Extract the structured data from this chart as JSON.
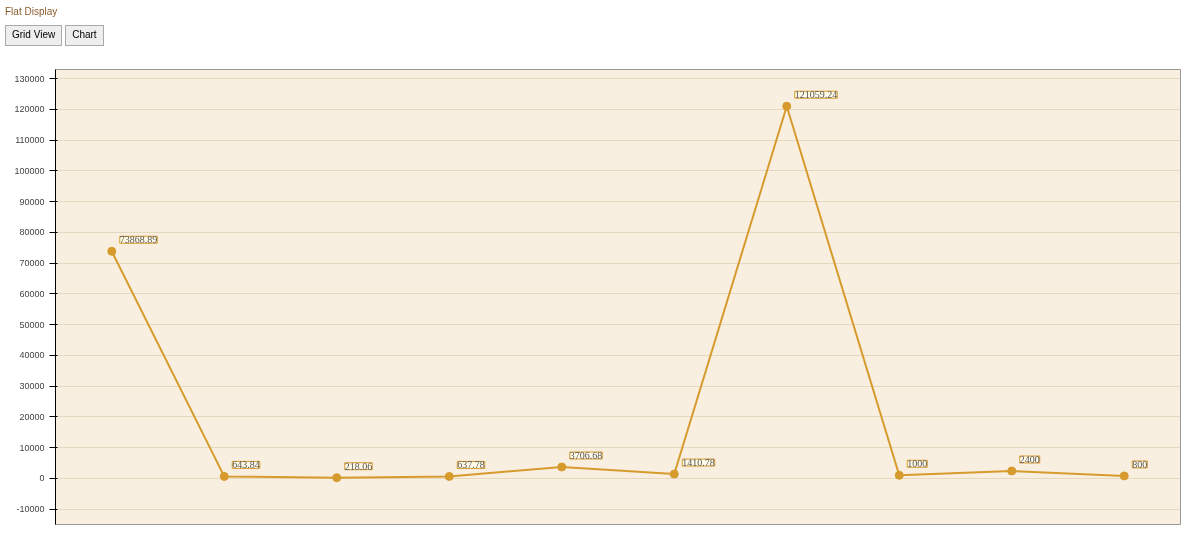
{
  "chart_data": {
    "type": "line",
    "title": "Flat Display",
    "annotations": [
      "Grid View",
      "Chart"
    ],
    "categories": [
      null,
      null,
      null,
      null,
      null,
      null,
      null,
      null,
      null,
      null
    ],
    "series": [
      {
        "color": "#d69a2d",
        "values": [
          73868.89,
          643.84,
          218.06,
          637.78,
          3706.68,
          1410.78,
          121059.24,
          1000,
          2400,
          800
        ]
      }
    ],
    "value_labels": [
      "73868.89",
      "643.84",
      "218.06",
      "637.78",
      "3706.68",
      "1410.78",
      "121059.24",
      "1000",
      "2400",
      "800"
    ],
    "ylim": [
      -15000,
      133000
    ],
    "yticks": [
      -10000,
      0,
      10000,
      20000,
      30000,
      40000,
      50000,
      60000,
      70000,
      80000,
      90000,
      100000,
      110000,
      120000,
      130000
    ],
    "grid": "y",
    "marker": "circle",
    "line_style": "solid",
    "tick_labels": "y"
  }
}
